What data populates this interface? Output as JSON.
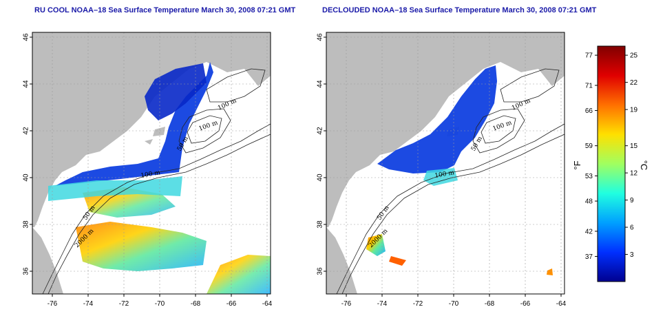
{
  "left_panel": {
    "title": "RU COOL NOAA–18 Sea Surface Temperature March 30, 2008 07:21 GMT",
    "x_ticks": [
      "-76",
      "-74",
      "-72",
      "-70",
      "-68",
      "-66",
      "-64"
    ],
    "y_ticks": [
      "36",
      "38",
      "40",
      "42",
      "44",
      "46"
    ],
    "contour_labels": [
      "100 m",
      "100 m",
      "50 m",
      "100 m",
      "50 m",
      "2000 m"
    ]
  },
  "right_panel": {
    "title": "DECLOUDED NOAA–18 Sea Surface Temperature March 30, 2008 07:21 GMT",
    "x_ticks": [
      "-76",
      "-74",
      "-72",
      "-70",
      "-68",
      "-66",
      "-64"
    ],
    "y_ticks": [
      "36",
      "38",
      "40",
      "42",
      "44",
      "46"
    ],
    "contour_labels": [
      "100 m",
      "100 m",
      "50 m",
      "100 m",
      "50 m",
      "2000 m"
    ]
  },
  "colorbar": {
    "fahrenheit_label": "°F",
    "celsius_label": "°C",
    "fahrenheit_ticks": [
      "77",
      "71",
      "66",
      "59",
      "53",
      "48",
      "42",
      "37"
    ],
    "celsius_ticks": [
      "25",
      "22",
      "19",
      "15",
      "12",
      "9",
      "6",
      "3"
    ],
    "range_celsius": [
      0,
      26
    ],
    "colors": [
      "#00008f",
      "#0030ff",
      "#00a0ff",
      "#20ffe0",
      "#a0ff60",
      "#ffe000",
      "#ff7000",
      "#e00000",
      "#800000"
    ]
  },
  "colors": {
    "land": "#bdbdbd",
    "cold": "#1040e0",
    "grid": "#999999",
    "title": "#1a1aa8"
  }
}
